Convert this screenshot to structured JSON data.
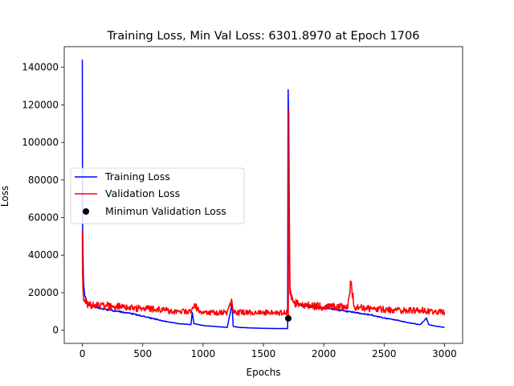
{
  "chart_data": {
    "type": "line",
    "title": "Training Loss, Min Val Loss: 6301.8970 at Epoch 1706",
    "xlabel": "Epochs",
    "ylabel": "Loss",
    "xlim": [
      -150,
      3150
    ],
    "ylim": [
      -7000,
      151000
    ],
    "xticks": [
      0,
      500,
      1000,
      1500,
      2000,
      2500,
      3000
    ],
    "xtick_labels": [
      "0",
      "500",
      "1000",
      "1500",
      "2000",
      "2500",
      "3000"
    ],
    "yticks": [
      0,
      20000,
      40000,
      60000,
      80000,
      100000,
      120000,
      140000
    ],
    "ytick_labels": [
      "0",
      "20000",
      "40000",
      "60000",
      "80000",
      "100000",
      "120000",
      "140000"
    ],
    "grid": false,
    "legend_position": "center-left",
    "series": [
      {
        "name": "Training Loss",
        "color": "#0000ff",
        "x": [
          0,
          2,
          5,
          10,
          20,
          40,
          60,
          100,
          200,
          300,
          400,
          500,
          600,
          700,
          800,
          900,
          910,
          925,
          1000,
          1100,
          1200,
          1240,
          1250,
          1300,
          1400,
          1500,
          1600,
          1700,
          1705,
          1708,
          1712,
          1720,
          1750,
          1800,
          1900,
          2000,
          2100,
          2200,
          2300,
          2400,
          2500,
          2600,
          2700,
          2800,
          2850,
          2870,
          2900,
          3000
        ],
        "y": [
          144000,
          60000,
          40000,
          25000,
          18000,
          15000,
          13500,
          12500,
          11000,
          10000,
          9000,
          7500,
          6000,
          4500,
          3500,
          3000,
          9500,
          3500,
          2500,
          2000,
          1500,
          14000,
          2000,
          1500,
          1200,
          1000,
          900,
          900,
          128000,
          112000,
          60000,
          20000,
          15000,
          13500,
          12500,
          12000,
          11000,
          10000,
          9000,
          8000,
          6500,
          5500,
          4000,
          3000,
          6500,
          3000,
          2500,
          1500
        ]
      },
      {
        "name": "Validation Loss",
        "color": "#ff0000",
        "x": [
          0,
          2,
          5,
          10,
          20,
          40,
          60,
          100,
          200,
          300,
          400,
          500,
          600,
          700,
          800,
          900,
          925,
          1000,
          1100,
          1200,
          1240,
          1250,
          1300,
          1400,
          1500,
          1600,
          1700,
          1706,
          1710,
          1715,
          1720,
          1750,
          1800,
          1900,
          2000,
          2100,
          2200,
          2225,
          2250,
          2300,
          2400,
          2500,
          2600,
          2700,
          2800,
          2900,
          3000
        ],
        "y": [
          53000,
          30000,
          22000,
          16000,
          15000,
          14000,
          13500,
          13500,
          13000,
          12500,
          12000,
          11500,
          11000,
          10500,
          10000,
          9800,
          13000,
          9700,
          9600,
          9500,
          15000,
          9500,
          9500,
          9400,
          9300,
          9300,
          9300,
          6301.897,
          117000,
          64000,
          20000,
          15000,
          13500,
          13000,
          12500,
          12500,
          12500,
          26000,
          12500,
          12000,
          11500,
          11000,
          10500,
          10500,
          10500,
          10000,
          9500
        ]
      }
    ],
    "markers": [
      {
        "name": "Minimun Validation Loss",
        "color": "#000000",
        "x": 1706,
        "y": 6301.897
      }
    ]
  }
}
